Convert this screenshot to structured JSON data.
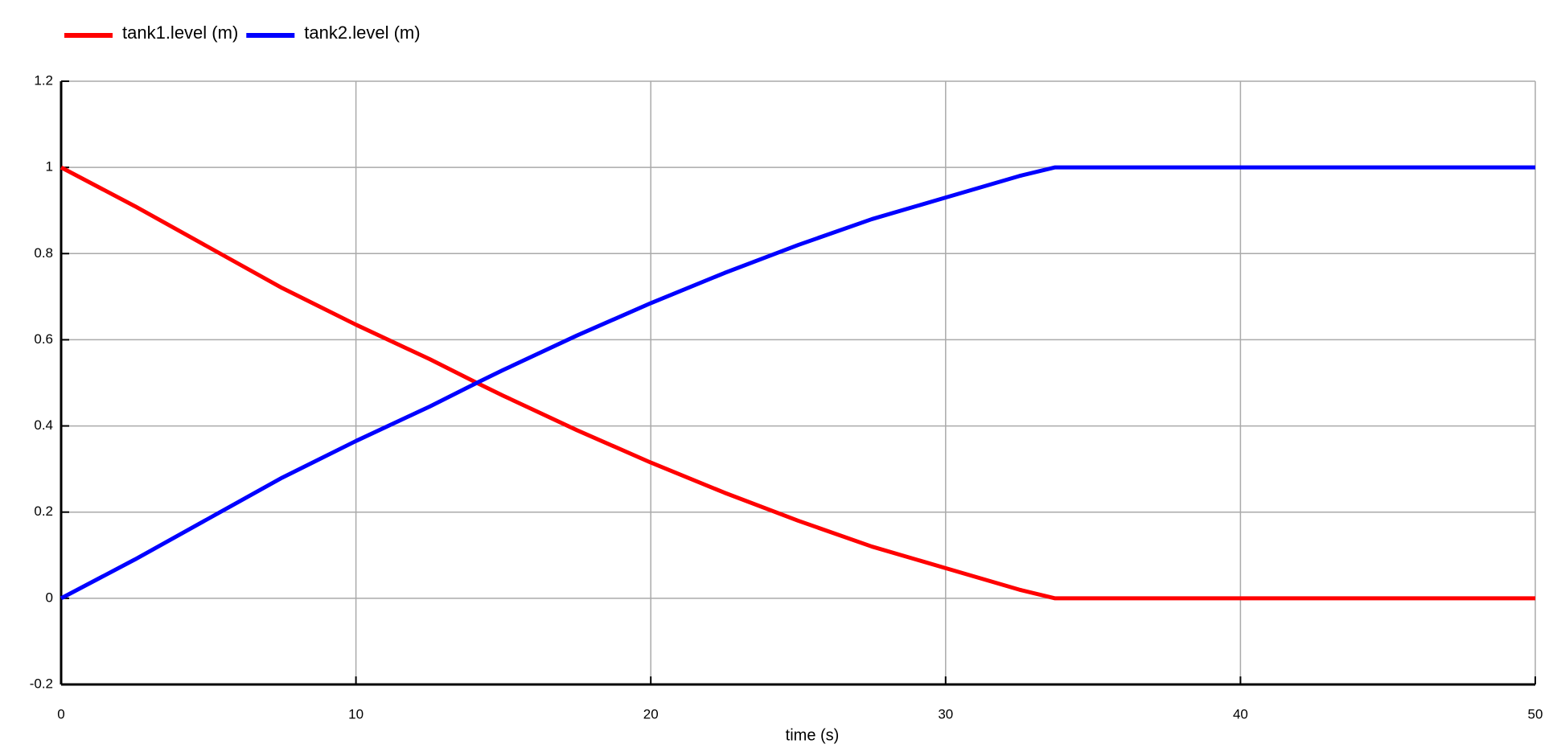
{
  "chart_data": {
    "type": "line",
    "x": [
      0,
      2.5,
      5,
      7.5,
      10,
      12.5,
      14.1,
      15,
      17.5,
      20,
      22.5,
      25,
      27.5,
      30,
      32.5,
      33.7,
      40,
      50
    ],
    "series": [
      {
        "name": "tank1.level (m)",
        "color": "#ff0000",
        "values": [
          1,
          0.91,
          0.815,
          0.72,
          0.635,
          0.555,
          0.5,
          0.47,
          0.39,
          0.315,
          0.245,
          0.18,
          0.12,
          0.07,
          0.02,
          0,
          0,
          0
        ]
      },
      {
        "name": "tank2.level (m)",
        "color": "#0000ff",
        "values": [
          0,
          0.09,
          0.185,
          0.28,
          0.365,
          0.445,
          0.5,
          0.53,
          0.61,
          0.685,
          0.755,
          0.82,
          0.88,
          0.93,
          0.98,
          1,
          1,
          1
        ]
      }
    ],
    "xlabel": "time (s)",
    "xlim": [
      0,
      50
    ],
    "xticks": [
      0,
      10,
      20,
      30,
      40,
      50
    ],
    "ylim": [
      -0.2,
      1.2
    ],
    "yticks": [
      -0.2,
      0,
      0.2,
      0.4,
      0.6,
      0.8,
      1,
      1.2
    ],
    "grid": true,
    "legend": "top-left"
  }
}
